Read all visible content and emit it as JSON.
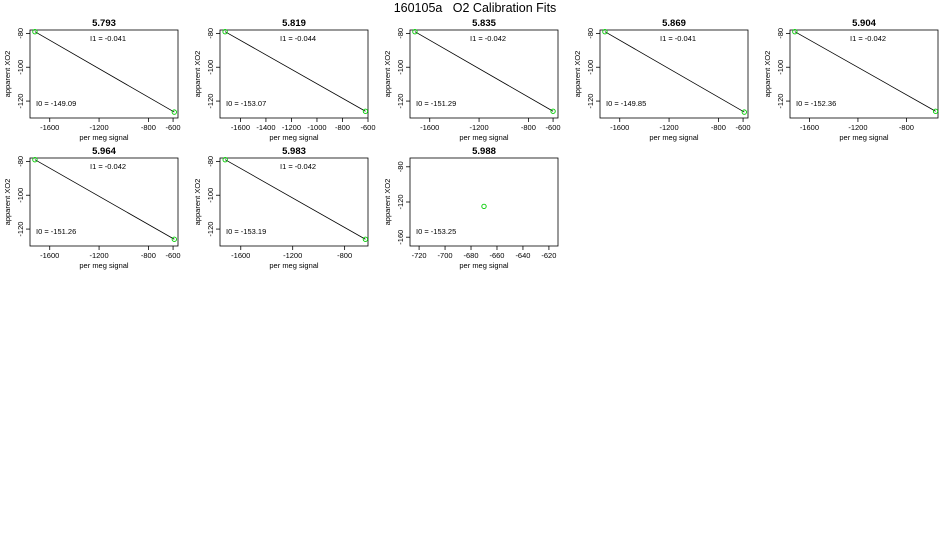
{
  "page": {
    "title": "160105a   O2 Calibration Fits"
  },
  "colors": {
    "fit_line": "#000000",
    "point": "#00cc00",
    "frame": "#000000"
  },
  "chart_data": [
    {
      "type": "scatter",
      "title": "5.793",
      "xlabel": "per meg signal",
      "ylabel": "apparent XO2",
      "xlim": [
        -1760,
        -560
      ],
      "ylim": [
        -130,
        -78
      ],
      "xticks": [
        -1600,
        -1200,
        -800,
        -600
      ],
      "yticks": [
        -80,
        -100,
        -120
      ],
      "points": [
        {
          "x": -1720,
          "y": -79
        },
        {
          "x": -590,
          "y": -126.5
        }
      ],
      "fit": {
        "i0": -149.09,
        "i1": -0.041
      },
      "i1_label": "I1 =  -0.041",
      "i0_label": "I0 =  -149.09"
    },
    {
      "type": "scatter",
      "title": "5.819",
      "xlabel": "per meg signal",
      "ylabel": "apparent XO2",
      "xlim": [
        -1760,
        -600
      ],
      "ylim": [
        -130,
        -78
      ],
      "xticks": [
        -1600,
        -1400,
        -1200,
        -1000,
        -800,
        -600
      ],
      "yticks": [
        -80,
        -100,
        -120
      ],
      "points": [
        {
          "x": -1720,
          "y": -79
        },
        {
          "x": -620,
          "y": -126
        }
      ],
      "fit": {
        "i0": -153.07,
        "i1": -0.044
      },
      "i1_label": "I1 =  -0.044",
      "i0_label": "I0 =  -153.07"
    },
    {
      "type": "scatter",
      "title": "5.835",
      "xlabel": "per meg signal",
      "ylabel": "apparent XO2",
      "xlim": [
        -1760,
        -560
      ],
      "ylim": [
        -130,
        -78
      ],
      "xticks": [
        -1600,
        -1200,
        -800,
        -600
      ],
      "yticks": [
        -80,
        -100,
        -120
      ],
      "points": [
        {
          "x": -1720,
          "y": -79
        },
        {
          "x": -600,
          "y": -126
        }
      ],
      "fit": {
        "i0": -151.29,
        "i1": -0.042
      },
      "i1_label": "I1 =  -0.042",
      "i0_label": "I0 =  -151.29"
    },
    {
      "type": "scatter",
      "title": "5.869",
      "xlabel": "per meg signal",
      "ylabel": "apparent XO2",
      "xlim": [
        -1760,
        -560
      ],
      "ylim": [
        -130,
        -78
      ],
      "xticks": [
        -1600,
        -1200,
        -800,
        -600
      ],
      "yticks": [
        -80,
        -100,
        -120
      ],
      "points": [
        {
          "x": -1720,
          "y": -79
        },
        {
          "x": -590,
          "y": -126.5
        }
      ],
      "fit": {
        "i0": -149.85,
        "i1": -0.041
      },
      "i1_label": "I1 =  -0.041",
      "i0_label": "I0 =  -149.85"
    },
    {
      "type": "scatter",
      "title": "5.904",
      "xlabel": "per meg signal",
      "ylabel": "apparent XO2",
      "xlim": [
        -1760,
        -540
      ],
      "ylim": [
        -130,
        -78
      ],
      "xticks": [
        -1600,
        -1200,
        -800
      ],
      "yticks": [
        -80,
        -100,
        -120
      ],
      "points": [
        {
          "x": -1720,
          "y": -79
        },
        {
          "x": -560,
          "y": -126
        }
      ],
      "fit": {
        "i0": -152.36,
        "i1": -0.042
      },
      "i1_label": "I1 =  -0.042",
      "i0_label": "I0 =  -152.36"
    },
    {
      "type": "scatter",
      "title": "5.964",
      "xlabel": "per meg signal",
      "ylabel": "apparent XO2",
      "xlim": [
        -1760,
        -560
      ],
      "ylim": [
        -130,
        -78
      ],
      "xticks": [
        -1600,
        -1200,
        -800,
        -600
      ],
      "yticks": [
        -80,
        -100,
        -120
      ],
      "points": [
        {
          "x": -1720,
          "y": -79
        },
        {
          "x": -590,
          "y": -126
        }
      ],
      "fit": {
        "i0": -151.26,
        "i1": -0.042
      },
      "i1_label": "I1 =  -0.042",
      "i0_label": "I0 =  -151.26"
    },
    {
      "type": "scatter",
      "title": "5.983",
      "xlabel": "per meg signal",
      "ylabel": "apparent XO2",
      "xlim": [
        -1760,
        -620
      ],
      "ylim": [
        -130,
        -78
      ],
      "xticks": [
        -1600,
        -1200,
        -800
      ],
      "yticks": [
        -80,
        -100,
        -120
      ],
      "points": [
        {
          "x": -1720,
          "y": -79
        },
        {
          "x": -640,
          "y": -126
        }
      ],
      "fit": {
        "i0": -153.19,
        "i1": -0.042
      },
      "i1_label": "I1 =  -0.042",
      "i0_label": "I0 =  -153.19"
    },
    {
      "type": "scatter",
      "title": "5.988",
      "xlabel": "per meg signal",
      "ylabel": "apparent XO2",
      "xlim": [
        -727,
        -613
      ],
      "ylim": [
        -170,
        -70
      ],
      "xticks": [
        -720,
        -700,
        -680,
        -660,
        -640,
        -620
      ],
      "yticks": [
        -80,
        -120,
        -160
      ],
      "points": [
        {
          "x": -670,
          "y": -125
        }
      ],
      "fit": null,
      "i1_label": "",
      "i0_label": "I0 =  -153.25"
    }
  ]
}
